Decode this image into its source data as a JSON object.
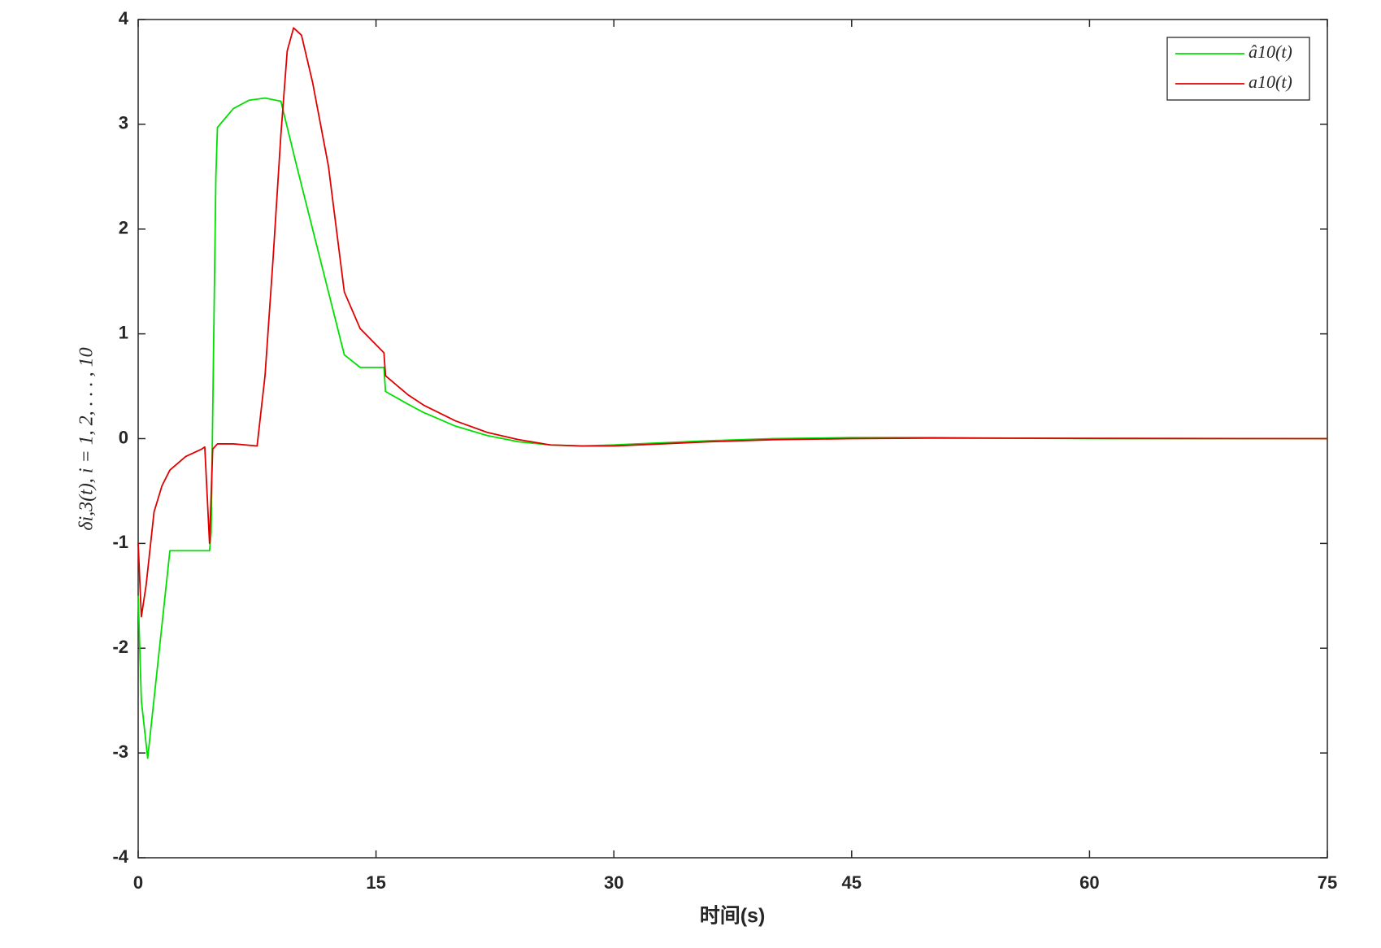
{
  "chart_data": {
    "type": "line",
    "xlabel": "时间(s)",
    "ylabel": "δi,3(t), i = 1, 2, . . . , 10",
    "xlim": [
      0,
      75
    ],
    "xticks": [
      0,
      15,
      30,
      45,
      60,
      75
    ],
    "ylim": [
      -4,
      4
    ],
    "yticks": [
      -4,
      -3,
      -2,
      -1,
      0,
      1,
      2,
      3,
      4
    ],
    "grid": false,
    "legend": "upper right",
    "series": [
      {
        "name": "â10(t)",
        "color": "#00e000",
        "x": [
          0,
          0.2,
          0.6,
          2.0,
          4.5,
          4.6,
          4.9,
          5.0,
          6,
          7,
          8,
          9,
          10,
          11,
          12,
          13,
          14,
          15.5,
          15.6,
          17,
          18,
          20,
          22,
          24,
          26,
          28,
          30,
          33,
          36,
          40,
          45,
          50,
          55,
          60,
          75
        ],
        "values": [
          -1.5,
          -2.5,
          -3.05,
          -1.07,
          -1.07,
          -0.9,
          2.5,
          2.97,
          3.15,
          3.23,
          3.25,
          3.22,
          2.6,
          2.0,
          1.4,
          0.8,
          0.68,
          0.68,
          0.45,
          0.33,
          0.25,
          0.12,
          0.03,
          -0.03,
          -0.06,
          -0.07,
          -0.06,
          -0.04,
          -0.02,
          0,
          0.01,
          0.01,
          0.005,
          0,
          0
        ]
      },
      {
        "name": "a10(t)",
        "color": "#e00000",
        "x": [
          0,
          0.2,
          0.5,
          1,
          1.5,
          2,
          3,
          4,
          4.2,
          4.5,
          4.7,
          5,
          6,
          7.5,
          8,
          8.5,
          9,
          9.4,
          9.8,
          10.3,
          11,
          12,
          13,
          14,
          15.5,
          15.6,
          17,
          18,
          20,
          22,
          24,
          26,
          28,
          30,
          33,
          36,
          40,
          45,
          50,
          75
        ],
        "values": [
          -1.0,
          -1.7,
          -1.4,
          -0.7,
          -0.45,
          -0.3,
          -0.17,
          -0.1,
          -0.08,
          -1.0,
          -0.1,
          -0.05,
          -0.05,
          -0.07,
          0.6,
          1.7,
          2.9,
          3.7,
          3.92,
          3.85,
          3.4,
          2.6,
          1.4,
          1.05,
          0.82,
          0.6,
          0.42,
          0.32,
          0.17,
          0.06,
          -0.01,
          -0.06,
          -0.07,
          -0.07,
          -0.05,
          -0.03,
          -0.01,
          0,
          0.005,
          0
        ]
      }
    ]
  }
}
